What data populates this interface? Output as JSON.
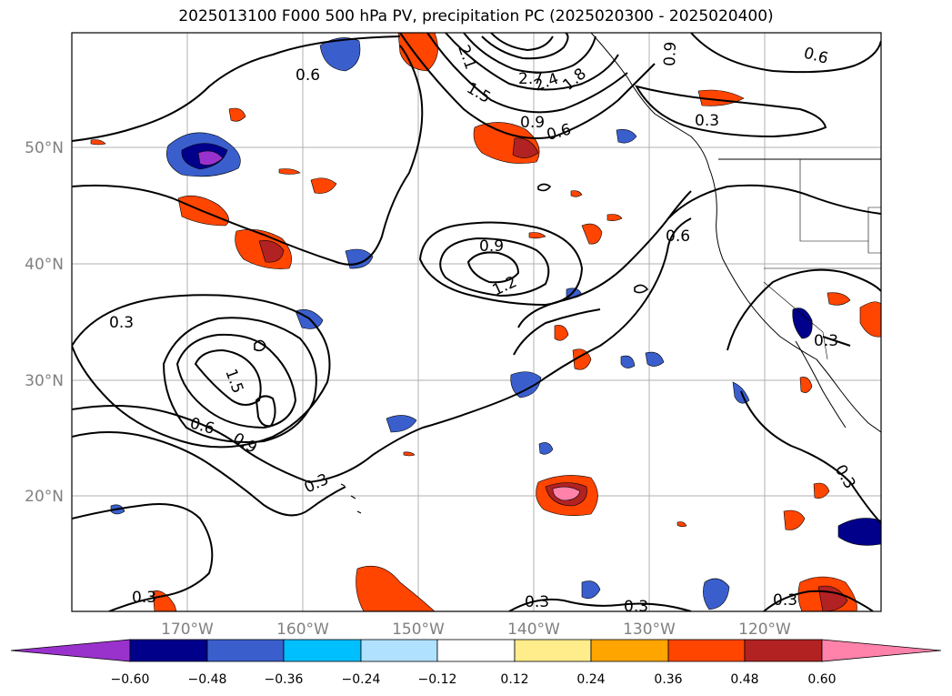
{
  "title": "2025013100 F000 500 hPa PV, precipitation PC (2025020300 - 2025020400)",
  "map": {
    "lon_labels": [
      "170°W",
      "160°W",
      "150°W",
      "140°W",
      "130°W",
      "120°W"
    ],
    "lat_labels": [
      "50°N",
      "40°N",
      "30°N",
      "20°N"
    ],
    "contour_labels": [
      "0.6",
      "0.9",
      "2.1",
      "2.7",
      "2.4",
      "1.8",
      "1.5",
      "0.9",
      "0.6",
      "0.3",
      "0.6",
      "0.6",
      "0.9",
      "1.2",
      "0.3",
      "1.5",
      "0.6",
      "0.9",
      "0.3",
      "0.3",
      "0.3",
      "0.3",
      "0.3",
      "0.3",
      "0.3"
    ]
  },
  "colorbar": {
    "ticks": [
      "−0.60",
      "−0.48",
      "−0.36",
      "−0.24",
      "−0.12",
      "0.12",
      "0.24",
      "0.36",
      "0.48",
      "0.60"
    ],
    "colors": [
      "#9932CC",
      "#00008B",
      "#3A5FCD",
      "#00BFFF",
      "#B0E2FF",
      "#FFFFFF",
      "#FFEC8B",
      "#FFA500",
      "#FF4500",
      "#B22222",
      "#FF82AB"
    ]
  }
}
